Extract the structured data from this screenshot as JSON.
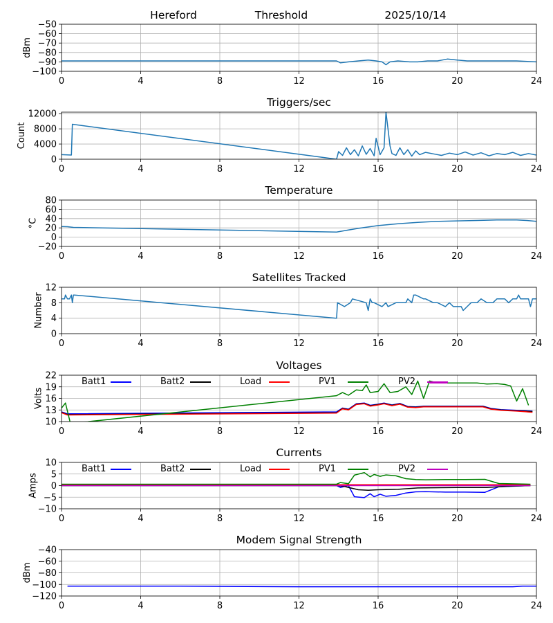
{
  "header": {
    "station": "Hereford",
    "mode": "Threshold",
    "date": "2025/10/14"
  },
  "chart_data": [
    {
      "id": "rssi",
      "type": "line",
      "title": "",
      "xlabel": "",
      "ylabel": "dBm",
      "xlim": [
        0,
        24
      ],
      "ylim": [
        -100,
        -50
      ],
      "yticks": [
        -100,
        -90,
        -80,
        -70,
        -60,
        -50
      ],
      "xticks": [
        0,
        4,
        8,
        12,
        16,
        20,
        24
      ],
      "grid": true,
      "series": [
        {
          "name": "RSSI",
          "color": "#1f77b4",
          "x": [
            0,
            13.9,
            14.1,
            14.5,
            15,
            15.5,
            15.9,
            16.2,
            16.4,
            16.6,
            17,
            17.6,
            18,
            18.5,
            19,
            19.5,
            20,
            20.5,
            21,
            22,
            23,
            24
          ],
          "y": [
            -89,
            -89,
            -91,
            -90,
            -89,
            -88,
            -89,
            -90,
            -93,
            -90,
            -89,
            -90,
            -90,
            -89,
            -89,
            -87,
            -88,
            -89,
            -89,
            -89,
            -89,
            -90
          ]
        }
      ]
    },
    {
      "id": "triggers",
      "type": "line",
      "title": "Triggers/sec",
      "xlabel": "",
      "ylabel": "Count",
      "xlim": [
        0,
        24
      ],
      "ylim": [
        0,
        12400
      ],
      "yticks": [
        0,
        4000,
        8000,
        12000
      ],
      "xticks": [
        0,
        4,
        8,
        12,
        16,
        20,
        24
      ],
      "grid": true,
      "series": [
        {
          "name": "Triggers",
          "color": "#1f77b4",
          "x": [
            0,
            0.5,
            0.55,
            13.9,
            14.0,
            14.2,
            14.4,
            14.6,
            14.8,
            15.0,
            15.2,
            15.4,
            15.6,
            15.8,
            15.9,
            16.1,
            16.3,
            16.4,
            16.5,
            16.6,
            16.7,
            16.9,
            17.1,
            17.3,
            17.5,
            17.7,
            17.9,
            18.1,
            18.4,
            18.8,
            19.2,
            19.6,
            20,
            20.4,
            20.8,
            21.2,
            21.6,
            22,
            22.4,
            22.8,
            23.2,
            23.6,
            24
          ],
          "y": [
            1200,
            1100,
            9200,
            0,
            2000,
            1000,
            3000,
            1200,
            2500,
            900,
            3500,
            1300,
            2800,
            900,
            5500,
            1200,
            3000,
            12400,
            8000,
            3500,
            1500,
            1000,
            3000,
            1200,
            2500,
            800,
            2200,
            1200,
            1800,
            1400,
            1000,
            1600,
            1200,
            1900,
            1100,
            1700,
            900,
            1500,
            1200,
            1800,
            1000,
            1500,
            1100
          ]
        }
      ]
    },
    {
      "id": "temperature",
      "type": "line",
      "title": "Temperature",
      "xlabel": "",
      "ylabel": "°C",
      "xlim": [
        0,
        24
      ],
      "ylim": [
        -20,
        80
      ],
      "yticks": [
        -20,
        0,
        20,
        40,
        60,
        80
      ],
      "xticks": [
        0,
        4,
        8,
        12,
        16,
        20,
        24
      ],
      "grid": true,
      "series": [
        {
          "name": "Temperature",
          "color": "#1f77b4",
          "x": [
            0,
            0.3,
            0.6,
            13.9,
            14.3,
            15,
            16,
            17,
            18,
            19,
            20,
            21,
            22,
            23,
            23.5,
            24
          ],
          "y": [
            23,
            22.5,
            21,
            11,
            14,
            19,
            25,
            29,
            32,
            34,
            35,
            36,
            37,
            37,
            36,
            34
          ]
        }
      ]
    },
    {
      "id": "satellites",
      "type": "line",
      "title": "Satellites Tracked",
      "xlabel": "",
      "ylabel": "Number",
      "xlim": [
        0,
        24
      ],
      "ylim": [
        0,
        12
      ],
      "yticks": [
        0,
        4,
        8,
        12
      ],
      "xticks": [
        0,
        4,
        8,
        12,
        16,
        20,
        24
      ],
      "grid": true,
      "series": [
        {
          "name": "Satellites",
          "color": "#1f77b4",
          "x": [
            0,
            0.15,
            0.2,
            0.3,
            0.4,
            0.5,
            0.55,
            0.6,
            0.65,
            13.9,
            13.95,
            14.3,
            14.6,
            14.7,
            15.4,
            15.5,
            15.6,
            15.7,
            15.8,
            16.2,
            16.4,
            16.5,
            16.9,
            17.0,
            17.4,
            17.5,
            17.7,
            17.8,
            17.9,
            18.3,
            18.4,
            18.8,
            19.0,
            19.4,
            19.6,
            19.8,
            20.2,
            20.3,
            20.5,
            20.7,
            21.0,
            21.2,
            21.5,
            21.8,
            22.0,
            22.4,
            22.6,
            22.8,
            23.0,
            23.1,
            23.2,
            23.6,
            23.7,
            23.8,
            24
          ],
          "y": [
            9,
            9,
            10,
            9,
            9,
            10,
            8,
            10,
            10,
            4,
            8,
            7,
            8,
            9,
            8,
            6,
            9,
            8,
            8,
            7,
            8,
            7,
            8,
            8,
            8,
            9,
            8,
            10,
            10,
            9,
            9,
            8,
            8,
            7,
            8,
            7,
            7,
            6,
            7,
            8,
            8,
            9,
            8,
            8,
            9,
            9,
            8,
            9,
            9,
            10,
            9,
            9,
            7,
            9,
            9
          ]
        }
      ]
    },
    {
      "id": "voltages",
      "type": "line",
      "title": "Voltages",
      "xlabel": "",
      "ylabel": "Volts",
      "xlim": [
        0,
        24
      ],
      "ylim": [
        10,
        22
      ],
      "yticks": [
        10,
        13,
        16,
        19,
        22
      ],
      "xticks": [
        0,
        4,
        8,
        12,
        16,
        20,
        24
      ],
      "grid": true,
      "legend": [
        "Batt1",
        "Batt2",
        "Load",
        "PV1",
        "PV2"
      ],
      "series": [
        {
          "name": "Batt1",
          "color": "#0000ff",
          "x": [
            0,
            0.3,
            13.9,
            14.2,
            14.5,
            14.9,
            15.3,
            15.6,
            16,
            16.3,
            16.7,
            17.1,
            17.5,
            17.9,
            18.3,
            21.3,
            21.7,
            22.2,
            23,
            23.8
          ],
          "y": [
            12.5,
            12,
            12.5,
            13.5,
            13.2,
            14.6,
            14.8,
            14.2,
            14.5,
            14.8,
            14.3,
            14.7,
            13.9,
            13.8,
            14.0,
            14.0,
            13.4,
            13.1,
            12.9,
            12.7
          ]
        },
        {
          "name": "Batt2",
          "color": "#000000",
          "x": [
            0,
            0.3,
            13.9,
            14.2,
            14.5,
            14.9,
            15.3,
            15.6,
            16,
            16.3,
            16.7,
            17.1,
            17.5,
            17.9,
            18.3,
            21.3,
            21.7,
            22.2,
            23,
            23.8
          ],
          "y": [
            12.4,
            11.8,
            12.3,
            13.4,
            13.1,
            14.5,
            14.7,
            14.1,
            14.4,
            14.7,
            14.2,
            14.6,
            13.8,
            13.7,
            13.9,
            13.9,
            13.3,
            13.0,
            12.8,
            12.6
          ]
        },
        {
          "name": "Load",
          "color": "#ff0000",
          "x": [
            0,
            0.3,
            13.9,
            14.2,
            14.5,
            14.9,
            15.3,
            15.6,
            16,
            16.3,
            16.7,
            17.1,
            17.5,
            17.9,
            18.3,
            21.3,
            21.7,
            22.2,
            23,
            23.8
          ],
          "y": [
            12.3,
            11.7,
            12.2,
            13.3,
            13.0,
            14.4,
            14.6,
            14.0,
            14.3,
            14.6,
            14.1,
            14.5,
            13.7,
            13.6,
            13.8,
            13.8,
            13.2,
            12.9,
            12.7,
            12.4
          ]
        },
        {
          "name": "PV1",
          "color": "#008000",
          "x": [
            0,
            0.2,
            0.45,
            13.9,
            14.2,
            14.5,
            14.9,
            15.2,
            15.4,
            15.6,
            16.0,
            16.3,
            16.6,
            17.0,
            17.4,
            17.7,
            18.0,
            18.3,
            18.6,
            19.0,
            20,
            21,
            21.5,
            22,
            22.4,
            22.7,
            23.0,
            23.3,
            23.6
          ],
          "y": [
            13.5,
            14.8,
            9.5,
            16.7,
            17.5,
            16.8,
            18.2,
            18.0,
            19.5,
            17.5,
            17.8,
            19.8,
            17.5,
            17.8,
            19.0,
            17.0,
            20.5,
            16.0,
            20.5,
            20.0,
            20.0,
            20.0,
            19.7,
            19.8,
            19.6,
            19.2,
            15.3,
            18.5,
            14.2
          ]
        },
        {
          "name": "PV2",
          "color": "#bf00bf",
          "x": [
            18.6,
            19.0,
            19.5
          ],
          "y": [
            20.0,
            20.0,
            20.0
          ]
        }
      ]
    },
    {
      "id": "currents",
      "type": "line",
      "title": "Currents",
      "xlabel": "",
      "ylabel": "Amps",
      "xlim": [
        0,
        24
      ],
      "ylim": [
        -10,
        10
      ],
      "yticks": [
        -10,
        -5,
        0,
        5,
        10
      ],
      "xticks": [
        0,
        4,
        8,
        12,
        16,
        20,
        24
      ],
      "grid": true,
      "legend": [
        "Batt1",
        "Batt2",
        "Load",
        "PV1",
        "PV2"
      ],
      "series": [
        {
          "name": "Batt1",
          "color": "#0000ff",
          "x": [
            0,
            13.9,
            14.1,
            14.5,
            14.8,
            15.3,
            15.6,
            15.8,
            16.1,
            16.4,
            16.9,
            17.4,
            17.9,
            18.4,
            19.4,
            20.4,
            21.4,
            22.1,
            23.7
          ],
          "y": [
            0,
            0,
            -0.8,
            0,
            -4.8,
            -5.2,
            -3.5,
            -4.8,
            -3.7,
            -4.6,
            -4.2,
            -3.2,
            -2.7,
            -2.6,
            -2.8,
            -2.8,
            -2.9,
            -0.5,
            0
          ]
        },
        {
          "name": "Batt2",
          "color": "#000000",
          "x": [
            0,
            13.9,
            14.3,
            15,
            15.5,
            16,
            17,
            18,
            20,
            21.5,
            22.5,
            23.7
          ],
          "y": [
            0,
            0,
            -0.4,
            -1.8,
            -2.0,
            -1.8,
            -1.6,
            -1.0,
            -0.8,
            -0.8,
            -0.3,
            0
          ]
        },
        {
          "name": "Load",
          "color": "#ff0000",
          "x": [
            0,
            23.7
          ],
          "y": [
            0.4,
            0.4
          ]
        },
        {
          "name": "PV1",
          "color": "#008000",
          "x": [
            0,
            13.9,
            14.1,
            14.5,
            14.8,
            15.3,
            15.6,
            15.8,
            16.1,
            16.4,
            16.9,
            17.4,
            17.9,
            18.4,
            19.4,
            20.4,
            21.4,
            22.1,
            23.7
          ],
          "y": [
            0.6,
            0.6,
            1.3,
            0.8,
            4.5,
            5.6,
            3.8,
            4.8,
            4.0,
            4.6,
            4.2,
            3.0,
            2.6,
            2.5,
            2.6,
            2.6,
            2.7,
            0.9,
            0.6
          ]
        },
        {
          "name": "PV2",
          "color": "#bf00bf",
          "x": [
            0,
            23.7
          ],
          "y": [
            0,
            0
          ]
        }
      ]
    },
    {
      "id": "modem",
      "type": "line",
      "title": "Modem Signal Strength",
      "xlabel": "",
      "ylabel": "dBm",
      "xlim": [
        0,
        24
      ],
      "ylim": [
        -120,
        -40
      ],
      "yticks": [
        -120,
        -100,
        -80,
        -60,
        -40
      ],
      "xticks": [
        0,
        4,
        8,
        12,
        16,
        20,
        24
      ],
      "grid": true,
      "series": [
        {
          "name": "Modem",
          "color": "#0000ff",
          "x": [
            0.3,
            6,
            12,
            18,
            22.8,
            23.3,
            24
          ],
          "y": [
            -103,
            -103,
            -104,
            -104,
            -104,
            -103,
            -103
          ]
        }
      ]
    }
  ]
}
